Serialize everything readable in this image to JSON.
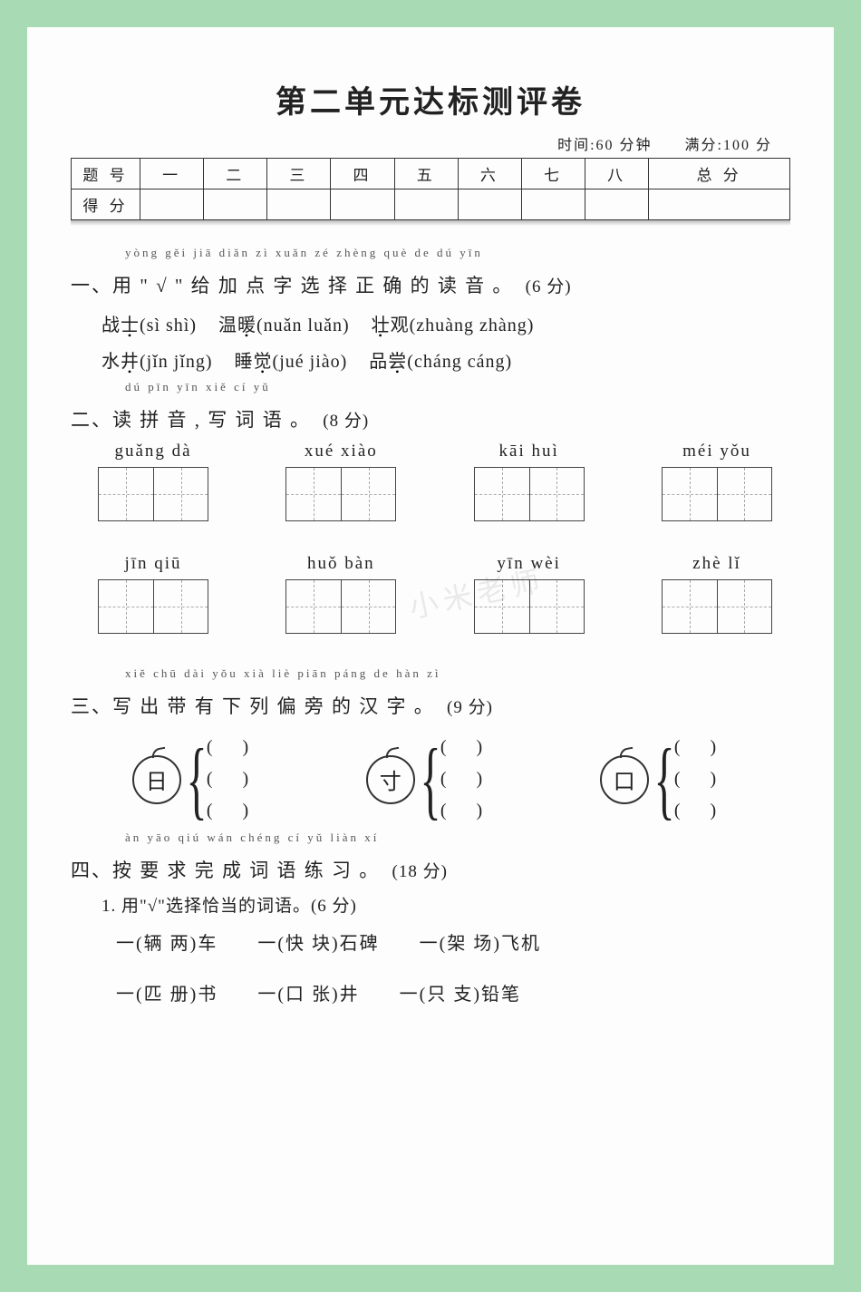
{
  "colors": {
    "page_bg": "#a8dbb4",
    "paper_bg": "#fdfdfd",
    "ink": "#222222",
    "grid_dash": "#aaaaaa"
  },
  "title": "第二单元达标测评卷",
  "meta": {
    "time_label": "时间:60 分钟",
    "full_label": "满分:100 分"
  },
  "score_table": {
    "row1_label": "题 号",
    "cols": [
      "一",
      "二",
      "三",
      "四",
      "五",
      "六",
      "七",
      "八",
      "总 分"
    ],
    "row2_label": "得 分"
  },
  "q1": {
    "ruby": "yòng            gěi  jiā  diǎn  zì  xuǎn  zé  zhèng  què  de  dú  yīn",
    "heading_pre": "一、用 \" √ \" 给 加 点 字 选 择 正 确 的 读 音 。",
    "points": "(6 分)",
    "items": [
      {
        "pre": "战",
        "dot": "士",
        "opts": "(sì   shì)"
      },
      {
        "pre": "温",
        "dot": "暖",
        "opts": "(nuǎn   luǎn)"
      },
      {
        "pre": "",
        "dot": "壮",
        "post": "观",
        "opts": "(zhuàng   zhàng)"
      },
      {
        "pre": "水",
        "dot": "井",
        "opts": "(jǐn   jǐng)"
      },
      {
        "pre": "睡",
        "dot": "觉",
        "opts": "(jué   jiào)"
      },
      {
        "pre": "品",
        "dot": "尝",
        "opts": "(cháng   cáng)"
      }
    ]
  },
  "q2": {
    "ruby": "dú  pīn  yīn     xiě  cí   yǔ",
    "heading": "二、读 拼 音 , 写 词 语 。",
    "points": "(8 分)",
    "rows": [
      [
        "guǎng dà",
        "xué xiào",
        "kāi   huì",
        "méi  yǒu"
      ],
      [
        "jīn   qiū",
        "huǒ  bàn",
        "yīn  wèi",
        "zhè   lǐ"
      ]
    ]
  },
  "q3": {
    "ruby": "xiě  chū  dài  yǒu  xià  liè  piān  páng  de  hàn  zì",
    "heading": "三、写 出 带 有 下 列 偏 旁 的 汉 字 。",
    "points": "(9 分)",
    "radicals": [
      "日",
      "寸",
      "口"
    ],
    "slot": "(        )"
  },
  "q4": {
    "ruby": "àn  yāo  qiú  wán  chéng  cí   yǔ  liàn  xí",
    "heading": "四、按 要 求 完 成 词 语 练 习 。",
    "points": "(18 分)",
    "sub1": "1.  用\"√\"选择恰当的词语。(6 分)",
    "rows": [
      [
        "一(辆   两)车",
        "一(快   块)石碑",
        "一(架   场)飞机"
      ],
      [
        "一(匹   册)书",
        "一(口   张)井",
        "一(只   支)铅笔"
      ]
    ]
  },
  "watermark": "小米老师"
}
